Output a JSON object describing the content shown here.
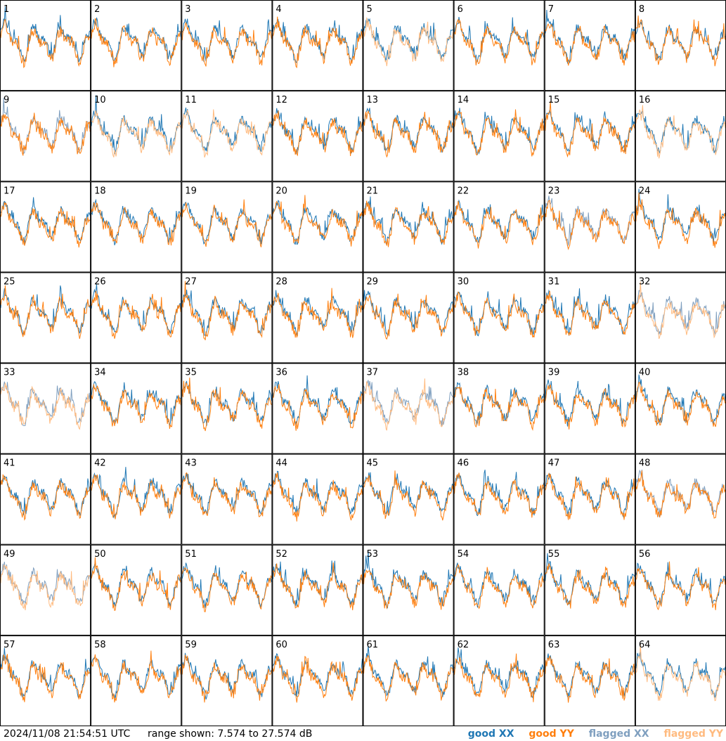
{
  "footer": {
    "timestamp": "2024/11/08 21:54:51 UTC",
    "range_text": "range shown: 7.574 to 27.574 dB"
  },
  "legend": {
    "good_xx": "good XX",
    "good_yy": "good YY",
    "flagged_xx": "flagged XX",
    "flagged_yy": "flagged YY"
  },
  "colors": {
    "good_xx": "#1f77b4",
    "good_yy": "#ff7f0e",
    "flagged_xx": "#7f9fbf",
    "flagged_yy": "#ffbb80"
  },
  "chart_data": {
    "type": "line",
    "grid": [
      8,
      8
    ],
    "ylim": [
      7.574,
      27.574
    ],
    "yunit": "dB",
    "panels": [
      {
        "label": "1",
        "xx": "good",
        "yy": "good"
      },
      {
        "label": "2",
        "xx": "good",
        "yy": "good"
      },
      {
        "label": "3",
        "xx": "good",
        "yy": "good"
      },
      {
        "label": "4",
        "xx": "good",
        "yy": "good"
      },
      {
        "label": "5",
        "xx": "good",
        "yy": "flagged"
      },
      {
        "label": "6",
        "xx": "good",
        "yy": "good"
      },
      {
        "label": "7",
        "xx": "good",
        "yy": "good"
      },
      {
        "label": "8",
        "xx": "good",
        "yy": "good"
      },
      {
        "label": "9",
        "xx": "flagged",
        "yy": "good"
      },
      {
        "label": "10",
        "xx": "good",
        "yy": "flagged"
      },
      {
        "label": "11",
        "xx": "good",
        "yy": "flagged"
      },
      {
        "label": "12",
        "xx": "good",
        "yy": "good"
      },
      {
        "label": "13",
        "xx": "good",
        "yy": "good"
      },
      {
        "label": "14",
        "xx": "good",
        "yy": "good"
      },
      {
        "label": "15",
        "xx": "good",
        "yy": "good"
      },
      {
        "label": "16",
        "xx": "good",
        "yy": "flagged"
      },
      {
        "label": "17",
        "xx": "good",
        "yy": "good"
      },
      {
        "label": "18",
        "xx": "good",
        "yy": "good"
      },
      {
        "label": "19",
        "xx": "good",
        "yy": "good"
      },
      {
        "label": "20",
        "xx": "good",
        "yy": "good"
      },
      {
        "label": "21",
        "xx": "good",
        "yy": "good"
      },
      {
        "label": "22",
        "xx": "good",
        "yy": "good"
      },
      {
        "label": "23",
        "xx": "flagged",
        "yy": "good"
      },
      {
        "label": "24",
        "xx": "good",
        "yy": "good"
      },
      {
        "label": "25",
        "xx": "good",
        "yy": "good"
      },
      {
        "label": "26",
        "xx": "good",
        "yy": "good"
      },
      {
        "label": "27",
        "xx": "good",
        "yy": "good"
      },
      {
        "label": "28",
        "xx": "good",
        "yy": "good"
      },
      {
        "label": "29",
        "xx": "good",
        "yy": "good"
      },
      {
        "label": "30",
        "xx": "good",
        "yy": "good"
      },
      {
        "label": "31",
        "xx": "good",
        "yy": "good"
      },
      {
        "label": "32",
        "xx": "flagged",
        "yy": "flagged"
      },
      {
        "label": "33",
        "xx": "flagged",
        "yy": "flagged"
      },
      {
        "label": "34",
        "xx": "good",
        "yy": "good"
      },
      {
        "label": "35",
        "xx": "good",
        "yy": "good"
      },
      {
        "label": "36",
        "xx": "good",
        "yy": "good"
      },
      {
        "label": "37",
        "xx": "flagged",
        "yy": "flagged"
      },
      {
        "label": "38",
        "xx": "good",
        "yy": "good"
      },
      {
        "label": "39",
        "xx": "good",
        "yy": "good"
      },
      {
        "label": "40",
        "xx": "good",
        "yy": "good"
      },
      {
        "label": "41",
        "xx": "good",
        "yy": "good"
      },
      {
        "label": "42",
        "xx": "good",
        "yy": "good"
      },
      {
        "label": "43",
        "xx": "good",
        "yy": "good"
      },
      {
        "label": "44",
        "xx": "good",
        "yy": "good"
      },
      {
        "label": "45",
        "xx": "good",
        "yy": "good"
      },
      {
        "label": "46",
        "xx": "good",
        "yy": "good"
      },
      {
        "label": "47",
        "xx": "good",
        "yy": "good"
      },
      {
        "label": "48",
        "xx": "flagged",
        "yy": "good"
      },
      {
        "label": "49",
        "xx": "flagged",
        "yy": "flagged"
      },
      {
        "label": "50",
        "xx": "good",
        "yy": "good"
      },
      {
        "label": "51",
        "xx": "good",
        "yy": "good"
      },
      {
        "label": "52",
        "xx": "good",
        "yy": "good"
      },
      {
        "label": "53",
        "xx": "good",
        "yy": "good"
      },
      {
        "label": "54",
        "xx": "good",
        "yy": "good"
      },
      {
        "label": "55",
        "xx": "good",
        "yy": "good"
      },
      {
        "label": "56",
        "xx": "good",
        "yy": "good"
      },
      {
        "label": "57",
        "xx": "good",
        "yy": "good"
      },
      {
        "label": "58",
        "xx": "good",
        "yy": "good"
      },
      {
        "label": "59",
        "xx": "good",
        "yy": "good"
      },
      {
        "label": "60",
        "xx": "good",
        "yy": "good"
      },
      {
        "label": "61",
        "xx": "good",
        "yy": "good"
      },
      {
        "label": "62",
        "xx": "good",
        "yy": "good"
      },
      {
        "label": "63",
        "xx": "good",
        "yy": "good"
      },
      {
        "label": "64",
        "xx": "good",
        "yy": "flagged"
      }
    ]
  }
}
